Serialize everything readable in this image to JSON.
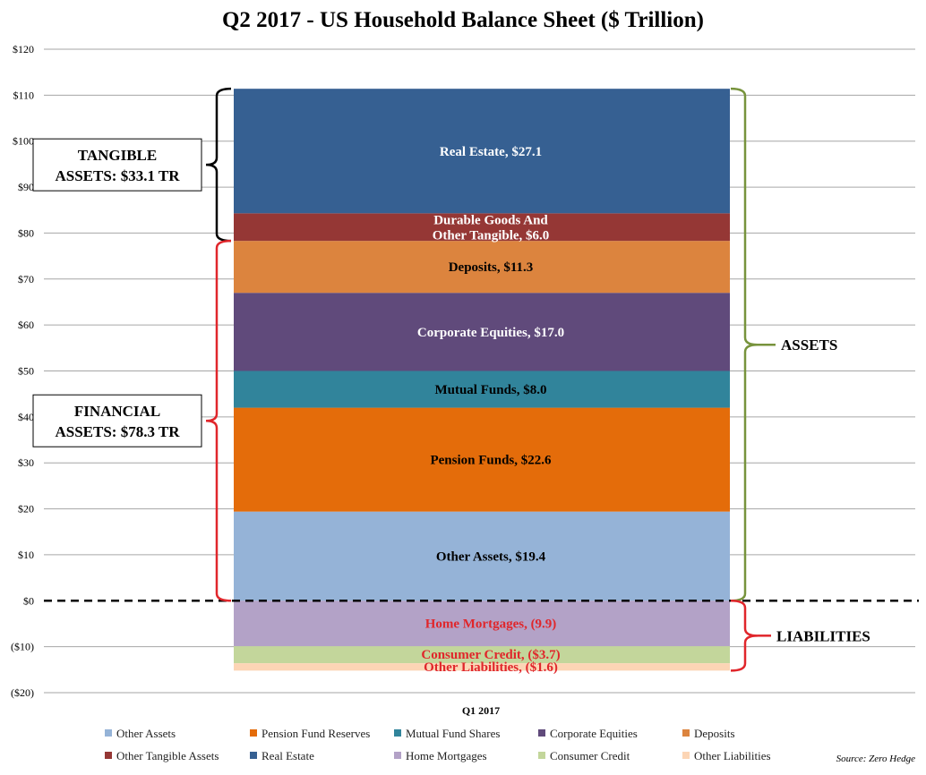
{
  "chart_data": {
    "type": "bar",
    "stacked": true,
    "title": "Q2 2017 - US Household Balance Sheet ($ Trillion)",
    "categories": [
      "Q1 2017"
    ],
    "ylim": [
      -20,
      120
    ],
    "yticks": [
      {
        "value": 120,
        "label": "$120"
      },
      {
        "value": 110,
        "label": "$110"
      },
      {
        "value": 100,
        "label": "$100"
      },
      {
        "value": 90,
        "label": "$90"
      },
      {
        "value": 80,
        "label": "$80"
      },
      {
        "value": 70,
        "label": "$70"
      },
      {
        "value": 60,
        "label": "$60"
      },
      {
        "value": 50,
        "label": "$50"
      },
      {
        "value": 40,
        "label": "$40"
      },
      {
        "value": 30,
        "label": "$30"
      },
      {
        "value": 20,
        "label": "$20"
      },
      {
        "value": 10,
        "label": "$10"
      },
      {
        "value": 0,
        "label": "$0"
      },
      {
        "value": -10,
        "label": "($10)"
      },
      {
        "value": -20,
        "label": "($20)"
      }
    ],
    "grid": true,
    "series": [
      {
        "name": "Other Assets",
        "value": 19.4,
        "color": "#95b3d7",
        "label": [
          "Other Assets, $19.4"
        ],
        "label_color": "#000000"
      },
      {
        "name": "Pension Fund Reserves",
        "value": 22.6,
        "color": "#e46c0a",
        "label": [
          "Pension Funds, $22.6"
        ],
        "label_color": "#000000"
      },
      {
        "name": "Mutual Fund Shares",
        "value": 8.0,
        "color": "#31849b",
        "label": [
          "Mutual Funds, $8.0"
        ],
        "label_color": "#000000"
      },
      {
        "name": "Corporate Equities",
        "value": 17.0,
        "color": "#604a7b",
        "label": [
          "Corporate Equities, $17.0"
        ],
        "label_color": "#ffffff"
      },
      {
        "name": "Deposits",
        "value": 11.3,
        "color": "#dc843e",
        "label": [
          "Deposits, $11.3"
        ],
        "label_color": "#000000"
      },
      {
        "name": "Other Tangible Assets",
        "value": 6.0,
        "color": "#953735",
        "label": [
          "Durable Goods And",
          "Other Tangible, $6.0"
        ],
        "label_color": "#ffffff"
      },
      {
        "name": "Real Estate",
        "value": 27.1,
        "color": "#366092",
        "label": [
          "Real Estate, $27.1"
        ],
        "label_color": "#ffffff"
      },
      {
        "name": "Home Mortgages",
        "value": -9.9,
        "color": "#b3a2c7",
        "label": [
          "Home Mortgages, (9.9)"
        ],
        "label_color": "#e0262b"
      },
      {
        "name": "Consumer Credit",
        "value": -3.7,
        "color": "#c3d69b",
        "label": [
          "Consumer Credit, ($3.7)"
        ],
        "label_color": "#e0262b"
      },
      {
        "name": "Other Liabilities",
        "value": -1.6,
        "color": "#fcd5b5",
        "label": [
          "Other Liabilities, ($1.6)"
        ],
        "label_color": "#e0262b"
      }
    ],
    "annotations": [
      {
        "text": [
          "TANGIBLE",
          "ASSETS:  $33.1 TR"
        ],
        "from": 78.3,
        "to": 111.4,
        "color": "#000000",
        "side": "left",
        "boxed": true
      },
      {
        "text": [
          "FINANCIAL",
          "ASSETS:  $78.3 TR"
        ],
        "from": 0,
        "to": 78.3,
        "color": "#e0262b",
        "side": "left",
        "boxed": true
      },
      {
        "text": [
          "ASSETS"
        ],
        "from": 0,
        "to": 111.4,
        "color": "#77933c",
        "side": "right",
        "boxed": false
      },
      {
        "text": [
          "LIABILITIES"
        ],
        "from": -15.2,
        "to": 0,
        "color": "#e0262b",
        "side": "right",
        "boxed": false
      }
    ],
    "legend_position": "bottom",
    "legend_rows": [
      [
        "Other Assets",
        "Pension Fund Reserves",
        "Mutual Fund Shares",
        "Corporate Equities",
        "Deposits"
      ],
      [
        "Other Tangible Assets",
        "Real Estate",
        "Home Mortgages",
        "Consumer Credit",
        "Other Liabilities"
      ]
    ],
    "source": "Source: Zero Hedge"
  }
}
